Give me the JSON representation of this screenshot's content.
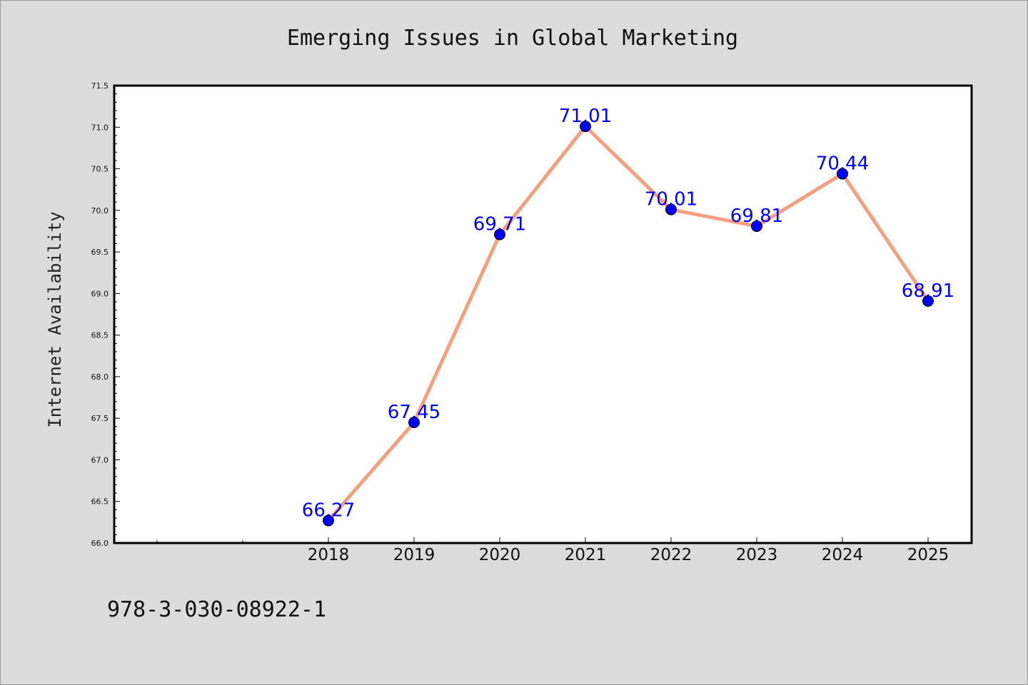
{
  "chart_data": {
    "type": "line",
    "title": "Emerging Issues in Global Marketing",
    "xlabel": "",
    "ylabel": "Internet Availability",
    "x": [
      "2018",
      "2019",
      "2020",
      "2021",
      "2022",
      "2023",
      "2024",
      "2025"
    ],
    "series": [
      {
        "values": [
          66.27,
          67.45,
          69.71,
          71.01,
          70.01,
          69.81,
          70.44,
          68.91
        ],
        "labels": [
          "66.27",
          "67.45",
          "69.71",
          "71.01",
          "70.01",
          "69.81",
          "70.44",
          "68.91"
        ],
        "line_color": "#f4a080",
        "marker_color": "#0000ff"
      }
    ],
    "ylim": [
      66.0,
      71.5
    ],
    "yticks": [
      "66.0",
      "66.5",
      "67.0",
      "67.5",
      "68.0",
      "68.5",
      "69.0",
      "69.5",
      "70.0",
      "70.5",
      "71.0",
      "71.5"
    ],
    "grid": false,
    "legend": "none"
  },
  "footer_text": "978-3-030-08922-1",
  "colors": {
    "background": "#dcdcdc",
    "plot_background": "#ffffff",
    "line": "#f4a080",
    "markers": "#0000ff",
    "data_labels": "#0000ff"
  }
}
